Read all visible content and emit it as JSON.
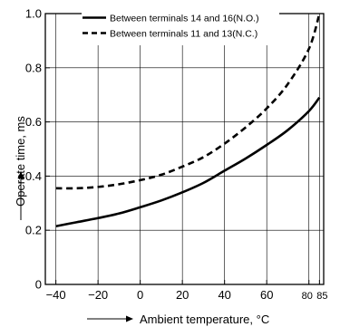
{
  "chart_data": {
    "type": "line",
    "title": "",
    "xlabel": "Ambient temperature, °C",
    "ylabel": "Operate time, ms",
    "xlim": [
      -45,
      87
    ],
    "ylim": [
      0,
      1.0
    ],
    "x_ticks": [
      -40,
      -20,
      0,
      20,
      40,
      60,
      80,
      85
    ],
    "x_tick_labels": [
      "−40",
      "−20",
      "0",
      "20",
      "40",
      "60",
      "80",
      "85"
    ],
    "y_ticks": [
      0,
      0.2,
      0.4,
      0.6,
      0.8,
      1.0
    ],
    "y_tick_labels": [
      "0",
      "0.2",
      "0.4",
      "0.6",
      "0.8",
      "1.0"
    ],
    "grid": true,
    "legend_position": "top-left",
    "series": [
      {
        "name": "Between terminals 14 and 16(N.O.)",
        "line_style": "solid",
        "x": [
          -40,
          -30,
          -20,
          -10,
          0,
          10,
          20,
          30,
          40,
          50,
          60,
          70,
          80,
          85
        ],
        "y": [
          0.215,
          0.23,
          0.245,
          0.262,
          0.285,
          0.31,
          0.34,
          0.375,
          0.42,
          0.465,
          0.515,
          0.57,
          0.64,
          0.69
        ]
      },
      {
        "name": "Between terminals 11 and 13(N.C.)",
        "line_style": "dashed",
        "x": [
          -40,
          -30,
          -20,
          -10,
          0,
          10,
          20,
          30,
          40,
          50,
          60,
          70,
          80,
          85
        ],
        "y": [
          0.355,
          0.355,
          0.36,
          0.37,
          0.385,
          0.405,
          0.435,
          0.47,
          0.52,
          0.58,
          0.65,
          0.74,
          0.87,
          1.0
        ]
      }
    ],
    "colors": {
      "line": "#000000",
      "grid": "#000000",
      "background": "#ffffff"
    }
  }
}
